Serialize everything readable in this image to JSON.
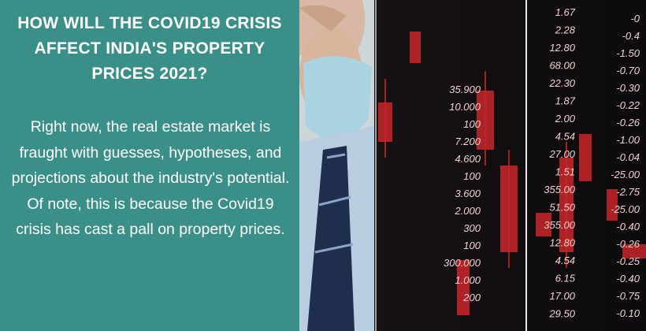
{
  "header": {
    "title": "HOW WILL THE COVID19 CRISIS AFFECT INDIA'S PROPERTY PRICES 2021?"
  },
  "body": {
    "text": "Right now, the real estate market is fraught with guesses, hypotheses, and projections about the industry's potential. Of note, this is because the Covid19 crisis has cast a pall on property prices."
  },
  "ticker_columns": [
    [
      "35.900",
      "10.000",
      "100",
      "7.200",
      "4.600",
      "100",
      "3.600",
      "2.000",
      "300",
      "100",
      "300.000",
      "1.000",
      "200"
    ],
    [
      "1.67",
      "2.28",
      "12.80",
      "68.00",
      "22.30",
      "1.87",
      "2.00",
      "4.54",
      "27.00",
      "1.51",
      "355.00",
      "51.50",
      "355.00",
      "12.80",
      "4.54",
      "6.15",
      "17.00",
      "29.50"
    ],
    [
      "-0",
      "-0.4",
      "-1.50",
      "-0.70",
      "-0.30",
      "-0.22",
      "-0.26",
      "-1.00",
      "-0.04",
      "-25.00",
      "-2.75",
      "-25.00",
      "-0.40",
      "-0.26",
      "-0.25",
      "-0.40",
      "-0.75",
      "-0.10"
    ]
  ]
}
